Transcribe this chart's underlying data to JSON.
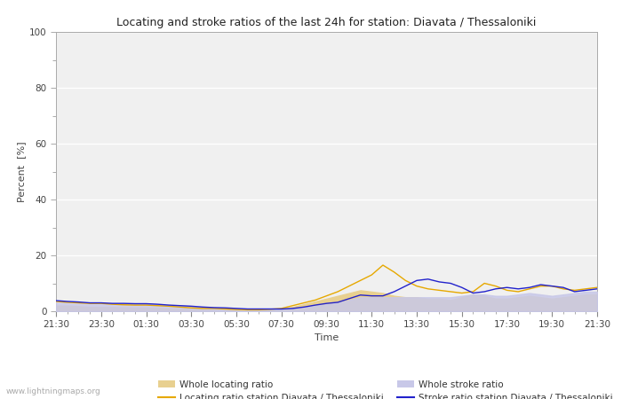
{
  "title": "Locating and stroke ratios of the last 24h for station: Diavata / Thessaloniki",
  "xlabel": "Time",
  "ylabel": "Percent  [%]",
  "xlim": [
    0,
    48
  ],
  "ylim": [
    0,
    100
  ],
  "yticks": [
    0,
    20,
    40,
    60,
    80,
    100
  ],
  "yticks_minor": [
    10,
    30,
    50,
    70,
    90
  ],
  "xtick_labels": [
    "21:30",
    "23:30",
    "01:30",
    "03:30",
    "05:30",
    "07:30",
    "09:30",
    "11:30",
    "13:30",
    "15:30",
    "17:30",
    "19:30",
    "21:30"
  ],
  "xtick_positions": [
    0,
    4,
    8,
    12,
    16,
    20,
    24,
    28,
    32,
    36,
    40,
    44,
    48
  ],
  "background_color": "#ffffff",
  "plot_bg_color": "#f0f0f0",
  "grid_color": "#ffffff",
  "watermark": "www.lightningmaps.org",
  "locating_line_color": "#e6a800",
  "stroke_line_color": "#2222cc",
  "locating_fill_color": "#e8d090",
  "stroke_fill_color": "#c8c8e8",
  "locating_whole": [
    2.0,
    2.0,
    1.8,
    1.5,
    1.5,
    1.5,
    1.4,
    1.3,
    1.3,
    1.2,
    1.0,
    1.0,
    0.8,
    0.7,
    0.7,
    0.5,
    0.4,
    0.3,
    0.3,
    0.5,
    0.8,
    1.5,
    2.5,
    3.5,
    4.5,
    5.5,
    6.5,
    7.5,
    7.0,
    6.5,
    5.5,
    5.0,
    5.0,
    4.5,
    4.5,
    4.0,
    5.0,
    6.0,
    5.5,
    4.5,
    4.5,
    5.0,
    5.5,
    5.0,
    4.5,
    5.0,
    5.5,
    6.0,
    6.0
  ],
  "stroke_whole": [
    3.5,
    3.5,
    3.2,
    3.0,
    3.0,
    2.8,
    2.8,
    2.8,
    2.7,
    2.5,
    2.2,
    2.0,
    1.8,
    1.5,
    1.3,
    1.2,
    1.0,
    0.8,
    0.8,
    0.8,
    0.8,
    1.0,
    1.5,
    2.0,
    2.5,
    3.0,
    4.0,
    5.0,
    5.0,
    5.0,
    5.0,
    5.0,
    5.0,
    5.0,
    5.0,
    5.0,
    5.5,
    6.0,
    6.0,
    5.5,
    5.5,
    6.0,
    6.5,
    6.0,
    5.5,
    6.0,
    6.5,
    7.0,
    7.0
  ],
  "locating_station": [
    3.5,
    3.2,
    3.0,
    2.8,
    2.8,
    2.5,
    2.3,
    2.2,
    2.2,
    2.0,
    1.8,
    1.5,
    1.2,
    1.0,
    1.0,
    0.8,
    0.6,
    0.5,
    0.5,
    0.7,
    1.0,
    2.0,
    3.0,
    4.0,
    5.5,
    7.0,
    9.0,
    11.0,
    13.0,
    16.5,
    14.0,
    11.0,
    9.0,
    8.0,
    7.5,
    7.0,
    6.5,
    7.0,
    10.0,
    9.0,
    7.5,
    7.0,
    8.0,
    9.0,
    9.0,
    8.0,
    7.5,
    8.0,
    8.5
  ],
  "stroke_station": [
    3.8,
    3.5,
    3.3,
    3.0,
    3.0,
    2.8,
    2.8,
    2.7,
    2.7,
    2.5,
    2.2,
    2.0,
    1.8,
    1.5,
    1.3,
    1.2,
    1.0,
    0.8,
    0.8,
    0.8,
    0.8,
    1.0,
    1.5,
    2.2,
    2.8,
    3.2,
    4.5,
    5.8,
    5.5,
    5.5,
    7.0,
    9.0,
    11.0,
    11.5,
    10.5,
    10.0,
    8.5,
    6.5,
    7.0,
    8.0,
    8.5,
    8.0,
    8.5,
    9.5,
    9.0,
    8.5,
    7.0,
    7.5,
    8.0
  ]
}
